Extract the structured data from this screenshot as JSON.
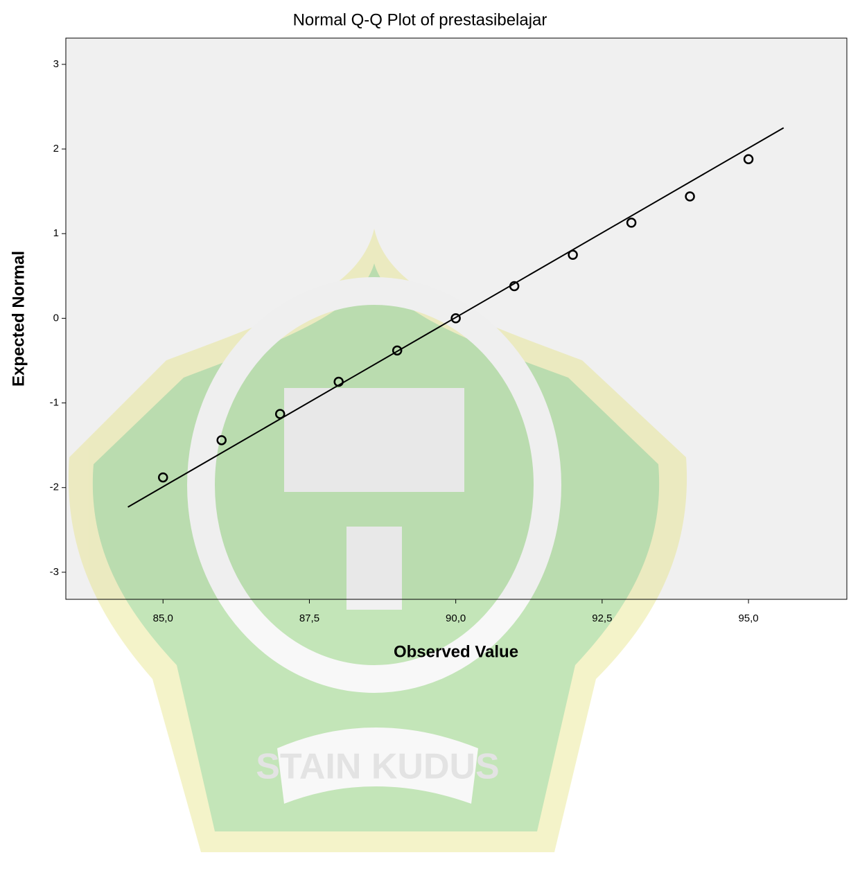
{
  "chart_data": {
    "type": "qq",
    "title": "Normal Q-Q Plot of prestasibelajar",
    "x_label": "Observed Value",
    "y_label": "Expected Normal",
    "x": [
      85,
      86,
      87,
      88,
      89,
      90,
      91,
      92,
      93,
      94,
      95
    ],
    "values": [
      -1.88,
      -1.44,
      -1.13,
      -0.75,
      -0.38,
      0,
      0.38,
      0.75,
      1.13,
      1.44,
      1.88
    ],
    "reference_line": {
      "x": [
        84.4,
        95.6
      ],
      "y": [
        -2.23,
        2.25
      ]
    },
    "xlim": [
      83.34,
      96.68
    ],
    "ylim": [
      -3.32,
      3.31
    ],
    "xticks": [
      {
        "value": 85,
        "label": "85,0"
      },
      {
        "value": 87.5,
        "label": "87,5"
      },
      {
        "value": 90,
        "label": "90,0"
      },
      {
        "value": 92.5,
        "label": "92,5"
      },
      {
        "value": 95,
        "label": "95,0"
      }
    ],
    "yticks": [
      -3,
      -2,
      -1,
      0,
      1,
      2,
      3
    ],
    "color": "#000000"
  },
  "watermark": "STAIN KUDUS"
}
